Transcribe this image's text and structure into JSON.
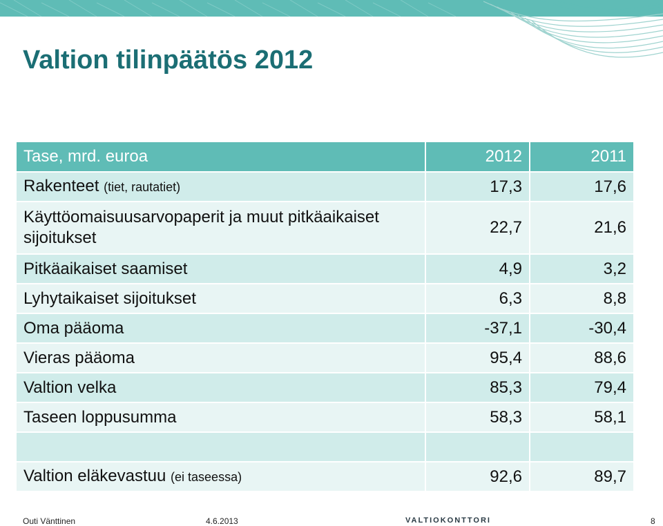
{
  "slide": {
    "title": "Valtion tilinpäätös 2012"
  },
  "table": {
    "header": {
      "label": "Tase, mrd. euroa",
      "year_a": "2012",
      "year_b": "2011"
    },
    "rows": [
      {
        "label": "Rakenteet",
        "note": "(tiet, rautatiet)",
        "v2012": "17,3",
        "v2011": "17,6"
      },
      {
        "label": "Käyttöomaisuusarvopaperit ja muut pitkäaikaiset sijoitukset",
        "v2012": "22,7",
        "v2011": "21,6"
      },
      {
        "label": "Pitkäaikaiset saamiset",
        "v2012": "4,9",
        "v2011": "3,2"
      },
      {
        "label": "Lyhytaikaiset sijoitukset",
        "v2012": "6,3",
        "v2011": "8,8"
      },
      {
        "label": "Oma pääoma",
        "v2012": "-37,1",
        "v2011": "-30,4"
      },
      {
        "label": "Vieras pääoma",
        "v2012": "95,4",
        "v2011": "88,6"
      },
      {
        "label": "Valtion velka",
        "v2012": "85,3",
        "v2011": "79,4"
      },
      {
        "label": "Taseen loppusumma",
        "v2012": "58,3",
        "v2011": "58,1"
      },
      {
        "label": "",
        "v2012": "",
        "v2011": ""
      },
      {
        "label": "Valtion eläkevastuu",
        "note": "(ei taseessa)",
        "v2012": "92,6",
        "v2011": "89,7"
      }
    ]
  },
  "footer": {
    "author": "Outi Vänttinen",
    "date": "4.6.2013",
    "logo_text": "VALTIOKONTTORI",
    "page_number": "8"
  },
  "colors": {
    "accent": "#5fbcb6",
    "title": "#1b6e74",
    "row_dark": "#d0ecea",
    "row_light": "#e8f5f4"
  }
}
